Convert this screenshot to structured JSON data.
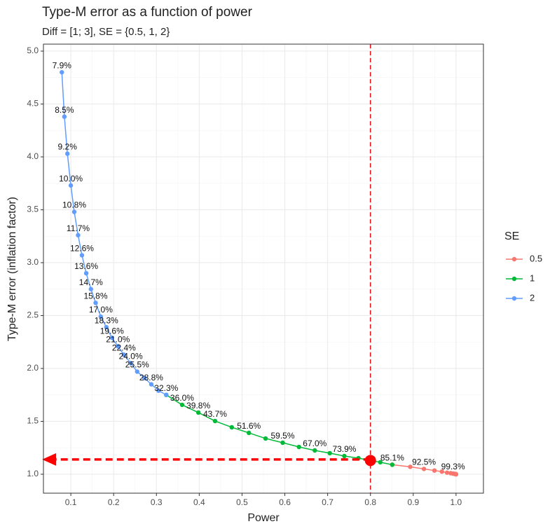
{
  "chart_data": {
    "type": "line",
    "title": "Type-M error as a function of power",
    "subtitle": "Diff = [1; 3], SE = {0.5, 1, 2}",
    "x_label": "Power",
    "y_label": "Type-M error (inflation factor)",
    "legend_title": "SE",
    "legend_position": "right",
    "grid": true,
    "xlim": [
      0.036,
      1.064
    ],
    "ylim": [
      0.821,
      5.066
    ],
    "xticks": [
      0.1,
      0.2,
      0.3,
      0.4,
      0.5,
      0.6,
      0.7,
      0.8,
      0.9,
      {
        "value": 1,
        "label": "1.0"
      }
    ],
    "yticks": [
      {
        "value": 1,
        "label": "1.0"
      },
      1.5,
      {
        "value": 2,
        "label": "2.0"
      },
      2.5,
      {
        "value": 3,
        "label": "3.0"
      },
      3.5,
      {
        "value": 4,
        "label": "4.0"
      },
      4.5,
      {
        "value": 5,
        "label": "5.0"
      }
    ],
    "series": [
      {
        "name": "0.5",
        "color": "#F8766D",
        "x": [
          0.851,
          0.893,
          0.925,
          0.9495,
          0.967,
          0.979,
          0.9875,
          0.993,
          0.996,
          0.998,
          0.9988,
          0.9994,
          0.9997,
          0.9999,
          0.99994,
          0.99997
        ],
        "values": [
          1.09,
          1.07,
          1.05,
          1.035,
          1.025,
          1.015,
          1.01,
          1.006,
          1.004,
          1.002,
          1.001,
          1.0005,
          1.0003,
          1.0001,
          1.0001,
          1.0
        ],
        "value_labels": [
          "85.1%",
          null,
          "92.5%",
          null,
          null,
          null,
          null,
          "99.3%",
          null,
          null,
          null,
          null,
          null,
          null,
          null,
          null
        ]
      },
      {
        "name": "1",
        "color": "#00BA38",
        "x": [
          0.323,
          0.36,
          0.398,
          0.437,
          0.476,
          0.516,
          0.555,
          0.595,
          0.633,
          0.67,
          0.705,
          0.739,
          0.772,
          0.8,
          0.823,
          0.851
        ],
        "values": [
          1.75,
          1.656,
          1.583,
          1.503,
          1.444,
          1.391,
          1.338,
          1.298,
          1.258,
          1.225,
          1.199,
          1.172,
          1.152,
          1.13,
          1.113,
          1.09
        ],
        "value_labels": [
          null,
          "36.0%",
          "39.8%",
          "43.7%",
          null,
          "51.6%",
          null,
          "59.5%",
          null,
          "67.0%",
          null,
          "73.9%",
          null,
          null,
          null,
          null
        ]
      },
      {
        "name": "2",
        "color": "#619CFF",
        "x": [
          0.079,
          0.085,
          0.092,
          0.1,
          0.108,
          0.117,
          0.126,
          0.136,
          0.147,
          0.158,
          0.17,
          0.183,
          0.196,
          0.21,
          0.224,
          0.24,
          0.255,
          0.272,
          0.288,
          0.305,
          0.323
        ],
        "values": [
          4.8,
          4.38,
          4.03,
          3.73,
          3.48,
          3.26,
          3.07,
          2.9,
          2.75,
          2.62,
          2.49,
          2.39,
          2.29,
          2.21,
          2.13,
          2.05,
          1.97,
          1.91,
          1.85,
          1.79,
          1.75
        ],
        "value_labels": [
          "7.9%",
          "8.5%",
          "9.2%",
          "10.0%",
          "10.8%",
          "11.7%",
          "12.6%",
          "13.6%",
          "14.7%",
          "15.8%",
          "17.0%",
          "18.3%",
          "19.6%",
          "21.0%",
          "22.4%",
          "24.0%",
          "25.5%",
          null,
          "28.8%",
          null,
          "32.3%"
        ]
      }
    ],
    "reference_line": {
      "x": 0.8,
      "color": "#e8141c"
    },
    "highlight": {
      "x": 0.8,
      "y": 1.13,
      "color": "#ff0000"
    },
    "arrow": {
      "x_from": 0.8,
      "x_to": 0.033,
      "y": 1.14,
      "color": "#ff0000"
    }
  }
}
